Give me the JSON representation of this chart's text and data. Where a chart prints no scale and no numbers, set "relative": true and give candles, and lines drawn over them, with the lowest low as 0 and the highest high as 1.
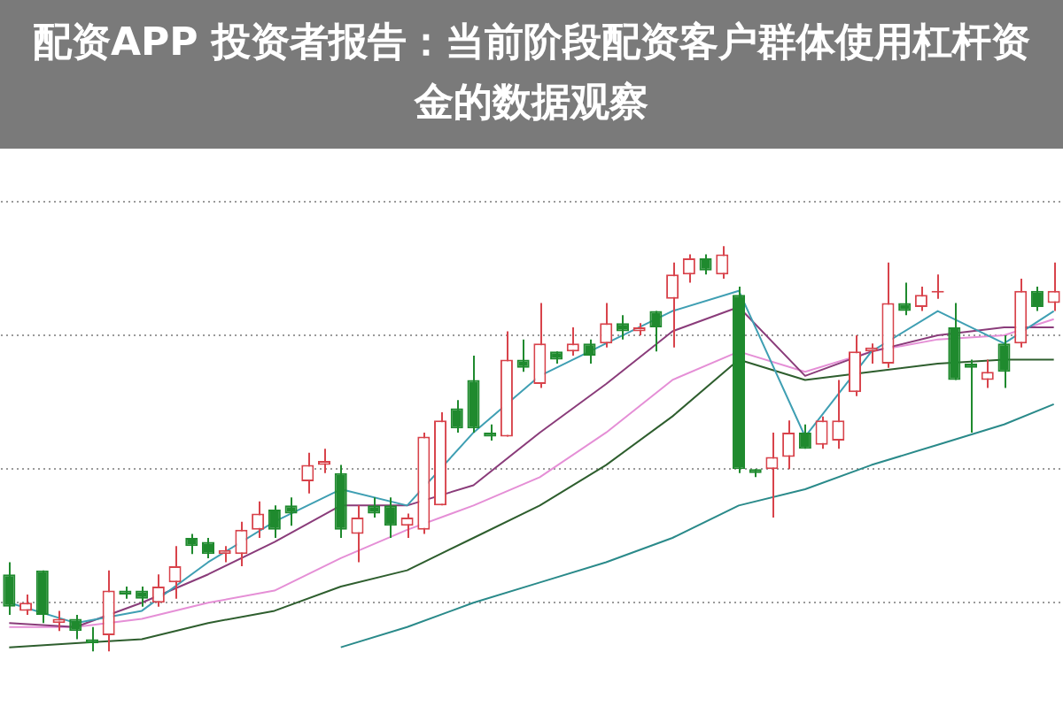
{
  "chart_data": {
    "type": "candlestick",
    "title": "配资APP 投资者报告：当前阶段配资客户群体使用杠杆资金的数据观察",
    "relative": true,
    "grid": "y",
    "categories": [
      null,
      null,
      null,
      null,
      null,
      null,
      null,
      null,
      null,
      null,
      null,
      null,
      null,
      null,
      null,
      null,
      null,
      null,
      null,
      null,
      null,
      null,
      null,
      null,
      null,
      null,
      null,
      null,
      null,
      null,
      null,
      null,
      null,
      null,
      null,
      null,
      null,
      null,
      null,
      null,
      null,
      null,
      null,
      null,
      null,
      null,
      null,
      null,
      null,
      null,
      null,
      null,
      null,
      null,
      null,
      null,
      null,
      null,
      null,
      null,
      null,
      null,
      null,
      null
    ],
    "ohlc": [
      [
        0.19,
        0.22,
        0.09,
        0.11
      ],
      [
        0.1,
        0.14,
        0.09,
        0.12
      ],
      [
        0.2,
        0.2,
        0.07,
        0.09
      ],
      [
        0.07,
        0.1,
        0.05,
        0.08
      ],
      [
        0.08,
        0.09,
        0.03,
        0.05
      ],
      [
        0.03,
        0.06,
        0,
        0.02
      ],
      [
        0.04,
        0.2,
        0,
        0.15
      ],
      [
        0.15,
        0.16,
        0.13,
        0.14
      ],
      [
        0.15,
        0.16,
        0.11,
        0.13
      ],
      [
        0.12,
        0.19,
        0.11,
        0.16
      ],
      [
        0.17,
        0.26,
        0.13,
        0.21
      ],
      [
        0.28,
        0.29,
        0.24,
        0.26
      ],
      [
        0.27,
        0.28,
        0.23,
        0.24
      ],
      [
        0.24,
        0.26,
        0.22,
        0.25
      ],
      [
        0.24,
        0.32,
        0.21,
        0.3
      ],
      [
        0.3,
        0.37,
        0.28,
        0.34
      ],
      [
        0.35,
        0.36,
        0.28,
        0.3
      ],
      [
        0.36,
        0.38,
        0.31,
        0.34
      ],
      [
        0.42,
        0.49,
        0.39,
        0.46
      ],
      [
        0.46,
        0.5,
        0.44,
        0.47
      ],
      [
        0.44,
        0.46,
        0.28,
        0.3
      ],
      [
        0.29,
        0.36,
        0.22,
        0.33
      ],
      [
        0.36,
        0.38,
        0.33,
        0.34
      ],
      [
        0.36,
        0.38,
        0.28,
        0.31
      ],
      [
        0.31,
        0.34,
        0.28,
        0.33
      ],
      [
        0.3,
        0.54,
        0.29,
        0.53
      ],
      [
        0.36,
        0.59,
        0.36,
        0.57
      ],
      [
        0.6,
        0.62,
        0.54,
        0.55
      ],
      [
        0.67,
        0.73,
        0.54,
        0.55
      ],
      [
        0.54,
        0.56,
        0.52,
        0.53
      ],
      [
        0.53,
        0.79,
        0.53,
        0.72
      ],
      [
        0.72,
        0.77,
        0.69,
        0.7
      ],
      [
        0.66,
        0.86,
        0.65,
        0.76
      ],
      [
        0.74,
        0.74,
        0.71,
        0.72
      ],
      [
        0.74,
        0.8,
        0.73,
        0.76
      ],
      [
        0.76,
        0.77,
        0.71,
        0.73
      ],
      [
        0.76,
        0.86,
        0.75,
        0.81
      ],
      [
        0.81,
        0.83,
        0.77,
        0.79
      ],
      [
        0.79,
        0.81,
        0.78,
        0.8
      ],
      [
        0.84,
        0.84,
        0.74,
        0.8
      ],
      [
        0.87,
        0.96,
        0.75,
        0.93
      ],
      [
        0.93,
        0.98,
        0.91,
        0.97
      ],
      [
        0.97,
        0.98,
        0.93,
        0.94
      ],
      [
        0.93,
        1,
        0.92,
        0.98
      ],
      [
        0.88,
        0.9,
        0.44,
        0.45
      ],
      [
        0.45,
        0.45,
        0.43,
        0.44
      ],
      [
        0.45,
        0.54,
        0.33,
        0.48
      ],
      [
        0.48,
        0.57,
        0.45,
        0.54
      ],
      [
        0.54,
        0.56,
        0.5,
        0.5
      ],
      [
        0.51,
        0.58,
        0.5,
        0.57
      ],
      [
        0.52,
        0.67,
        0.5,
        0.57
      ],
      [
        0.64,
        0.78,
        0.63,
        0.74
      ],
      [
        0.74,
        0.76,
        0.71,
        0.75
      ],
      [
        0.71,
        0.96,
        0.7,
        0.86
      ],
      [
        0.86,
        0.91,
        0.83,
        0.84
      ],
      [
        0.85,
        0.9,
        0.84,
        0.88
      ],
      [
        0.89,
        0.93,
        0.87,
        0.89
      ],
      [
        0.8,
        0.86,
        0.67,
        0.67
      ],
      [
        0.71,
        0.72,
        0.54,
        0.7
      ],
      [
        0.67,
        0.72,
        0.65,
        0.69
      ],
      [
        0.76,
        0.78,
        0.65,
        0.69
      ],
      [
        0.76,
        0.92,
        0.75,
        0.89
      ],
      [
        0.89,
        0.9,
        0.84,
        0.85
      ],
      [
        0.86,
        0.96,
        0.84,
        0.89
      ]
    ],
    "series": [
      {
        "type": "line",
        "color": "#3f9fb3",
        "values": [
          0.12,
          null,
          null,
          null,
          0.07,
          null,
          null,
          null,
          0.1,
          null,
          null,
          null,
          0.22,
          null,
          null,
          null,
          0.32,
          null,
          null,
          null,
          0.4,
          null,
          null,
          null,
          0.36,
          null,
          null,
          null,
          0.54,
          null,
          null,
          null,
          0.68,
          null,
          null,
          null,
          0.76,
          null,
          null,
          null,
          0.84,
          null,
          null,
          null,
          0.89,
          null,
          null,
          null,
          0.53,
          null,
          null,
          null,
          0.74,
          null,
          null,
          null,
          0.84,
          null,
          null,
          null,
          0.76,
          null,
          null,
          0.84
        ]
      },
      {
        "type": "line",
        "color": "#8a3c7a",
        "values": [
          0.07,
          null,
          null,
          null,
          0.06,
          null,
          null,
          null,
          0.12,
          null,
          null,
          null,
          0.19,
          null,
          null,
          null,
          0.27,
          null,
          null,
          null,
          0.36,
          null,
          null,
          null,
          0.36,
          null,
          null,
          null,
          0.41,
          null,
          null,
          null,
          0.54,
          null,
          null,
          null,
          0.66,
          null,
          null,
          null,
          0.79,
          null,
          null,
          null,
          0.85,
          null,
          null,
          null,
          0.68,
          null,
          null,
          null,
          0.74,
          null,
          null,
          null,
          0.78,
          null,
          null,
          null,
          0.8,
          null,
          null,
          0.8
        ]
      },
      {
        "type": "line",
        "color": "#e58fd6",
        "values": [
          0.06,
          null,
          null,
          null,
          0.06,
          null,
          null,
          null,
          0.08,
          null,
          null,
          null,
          0.12,
          null,
          null,
          null,
          0.15,
          null,
          null,
          null,
          0.23,
          null,
          null,
          null,
          0.3,
          null,
          null,
          null,
          0.36,
          null,
          null,
          null,
          0.43,
          null,
          null,
          null,
          0.54,
          null,
          null,
          null,
          0.67,
          null,
          null,
          null,
          0.74,
          null,
          null,
          null,
          0.69,
          null,
          null,
          null,
          0.74,
          null,
          null,
          null,
          0.77,
          null,
          null,
          null,
          0.78,
          null,
          null,
          0.82
        ]
      },
      {
        "type": "line",
        "color": "#2e5e2e",
        "values": [
          0.01,
          null,
          null,
          null,
          0.02,
          null,
          null,
          null,
          0.03,
          null,
          null,
          null,
          0.07,
          null,
          null,
          null,
          0.1,
          null,
          null,
          null,
          0.16,
          null,
          null,
          null,
          0.2,
          null,
          null,
          null,
          0.28,
          null,
          null,
          null,
          0.36,
          null,
          null,
          null,
          0.46,
          null,
          null,
          null,
          0.58,
          null,
          null,
          null,
          0.72,
          null,
          null,
          null,
          0.67,
          null,
          null,
          null,
          0.69,
          null,
          null,
          null,
          0.71,
          null,
          null,
          null,
          0.72,
          null,
          null,
          0.72
        ]
      },
      {
        "type": "line",
        "color": "#2a8a8a",
        "values": [
          null,
          null,
          null,
          null,
          null,
          null,
          null,
          null,
          null,
          null,
          null,
          null,
          null,
          null,
          null,
          null,
          null,
          null,
          null,
          null,
          0.01,
          null,
          null,
          null,
          0.06,
          null,
          null,
          null,
          0.12,
          null,
          null,
          null,
          0.17,
          null,
          null,
          null,
          0.22,
          null,
          null,
          null,
          0.28,
          null,
          null,
          null,
          0.36,
          null,
          null,
          null,
          0.4,
          null,
          null,
          null,
          0.46,
          null,
          null,
          null,
          0.51,
          null,
          null,
          null,
          0.56,
          null,
          null,
          0.61
        ]
      }
    ]
  }
}
